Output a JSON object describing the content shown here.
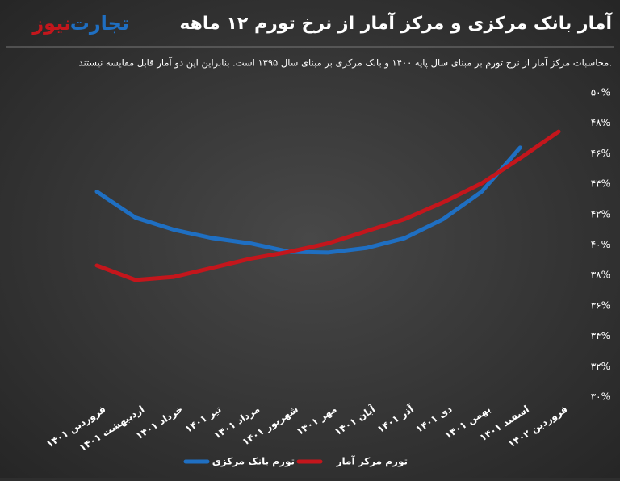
{
  "chart_data": {
    "type": "line",
    "title": "آمار بانک مرکزی و مرکز آمار از نرخ تورم ۱۲ ماهه",
    "subtitle": "محاسبات مرکز آمار از نرخ تورم بر مبنای سال پایه ۱۴۰۰ و بانک مرکزی بر مبنای سال ۱۳۹۵ است. بنابراین این دو آمار قابل مقایسه نیستند.",
    "logo": {
      "part1": "تجارت",
      "part2": "نیوز"
    },
    "categories": [
      "فروردین ۱۴۰۱",
      "اردیبهشت ۱۴۰۱",
      "خرداد ۱۴۰۱",
      "تیر ۱۴۰۱",
      "مرداد ۱۴۰۱",
      "شهریور ۱۴۰۱",
      "مهر ۱۴۰۱",
      "آبان ۱۴۰۱",
      "آذر ۱۴۰۱",
      "دی ۱۴۰۱",
      "بهمن ۱۴۰۱",
      "اسفند ۱۴۰۱",
      "فروردین ۱۴۰۲"
    ],
    "series": [
      {
        "name": "تورم بانک مرکزی",
        "color": "#1f6fc2",
        "values": [
          43.5,
          41.8,
          41.0,
          40.45,
          40.1,
          39.55,
          39.5,
          39.8,
          40.45,
          41.7,
          43.5,
          46.4,
          null
        ]
      },
      {
        "name": "تورم مرکز آمار",
        "color": "#c4161c",
        "values": [
          38.65,
          37.7,
          37.9,
          38.5,
          39.1,
          39.55,
          40.1,
          40.9,
          41.7,
          42.8,
          44.05,
          45.7,
          47.45
        ]
      }
    ],
    "ylim": [
      30,
      50
    ],
    "yticks": [
      {
        "value": 30,
        "label": "۳۰%"
      },
      {
        "value": 32,
        "label": "۳۲%"
      },
      {
        "value": 34,
        "label": "۳۴%"
      },
      {
        "value": 36,
        "label": "۳۶%"
      },
      {
        "value": 38,
        "label": "۳۸%"
      },
      {
        "value": 40,
        "label": "۴۰%"
      },
      {
        "value": 42,
        "label": "۴۲%"
      },
      {
        "value": 44,
        "label": "۴۴%"
      },
      {
        "value": 46,
        "label": "۴۶%"
      },
      {
        "value": 48,
        "label": "۴۸%"
      },
      {
        "value": 50,
        "label": "۵۰%"
      }
    ],
    "grid": false,
    "legend": "bottom"
  }
}
